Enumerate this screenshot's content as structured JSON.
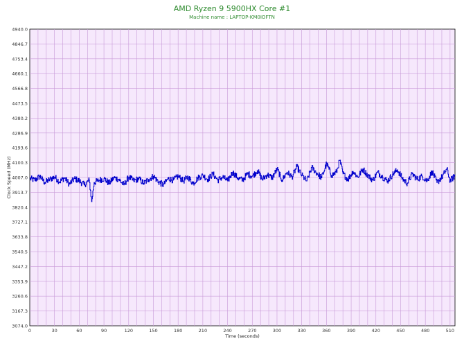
{
  "chart_data": {
    "type": "line",
    "title": "AMD Ryzen 9 5900HX Core #1",
    "subtitle": "Machine name : LAPTOP-KM0IOFTN",
    "xlabel": "Time (seconds)",
    "ylabel": "Clock Speed (MHz)",
    "xlim": [
      0,
      516
    ],
    "ylim": [
      3074.0,
      4940.0
    ],
    "x_ticks": [
      "0",
      "30",
      "60",
      "90",
      "120",
      "150",
      "180",
      "210",
      "240",
      "270",
      "300",
      "330",
      "360",
      "390",
      "420",
      "450",
      "480",
      "510"
    ],
    "y_ticks": [
      "4940.0",
      "4846.7",
      "4753.4",
      "4660.1",
      "4566.8",
      "4473.5",
      "4380.2",
      "4286.9",
      "4193.6",
      "4100.3",
      "4007.0",
      "3913.7",
      "3820.4",
      "3727.1",
      "3633.8",
      "3540.5",
      "3447.2",
      "3353.9",
      "3260.6",
      "3167.3",
      "3074.0"
    ],
    "grid": true,
    "colors": {
      "plot_bg": "#f6e8fc",
      "grid": "#c89ad8",
      "line": "#0000cc",
      "title": "#2e8b2e"
    },
    "series": [
      {
        "x": [
          0,
          6,
          12,
          18,
          24,
          30,
          36,
          42,
          48,
          54,
          60,
          66,
          72,
          75,
          78,
          84,
          90,
          96,
          102,
          108,
          114,
          120,
          126,
          132,
          138,
          144,
          150,
          156,
          162,
          168,
          174,
          180,
          186,
          192,
          198,
          204,
          210,
          216,
          222,
          228,
          234,
          240,
          246,
          252,
          258,
          264,
          270,
          276,
          282,
          288,
          294,
          300,
          306,
          312,
          318,
          324,
          330,
          336,
          342,
          348,
          354,
          360,
          366,
          372,
          376,
          380,
          386,
          392,
          398,
          404,
          410,
          416,
          422,
          428,
          434,
          440,
          446,
          452,
          458,
          464,
          470,
          476,
          482,
          488,
          494,
          500,
          506,
          510,
          516
        ],
        "values": [
          4000,
          3990,
          4015,
          3975,
          3995,
          4010,
          3980,
          4005,
          3965,
          4000,
          3985,
          3960,
          3990,
          3855,
          3975,
          3990,
          4000,
          3970,
          4005,
          3995,
          3960,
          4010,
          3985,
          4000,
          3970,
          3995,
          4015,
          3980,
          3960,
          4000,
          3990,
          4015,
          3985,
          4010,
          3970,
          4005,
          4020,
          3995,
          4030,
          3990,
          4010,
          3985,
          4040,
          4005,
          3990,
          4030,
          4015,
          4050,
          3995,
          4025,
          4005,
          4060,
          3990,
          4040,
          4010,
          4075,
          4020,
          3985,
          4070,
          4035,
          4005,
          4095,
          4020,
          4040,
          4115,
          4030,
          3995,
          4045,
          4010,
          4060,
          4020,
          3990,
          4040,
          4010,
          3985,
          4025,
          4055,
          4000,
          3970,
          4030,
          3995,
          4015,
          3985,
          4045,
          3975,
          4010,
          4060,
          3985,
          4020
        ]
      }
    ]
  }
}
